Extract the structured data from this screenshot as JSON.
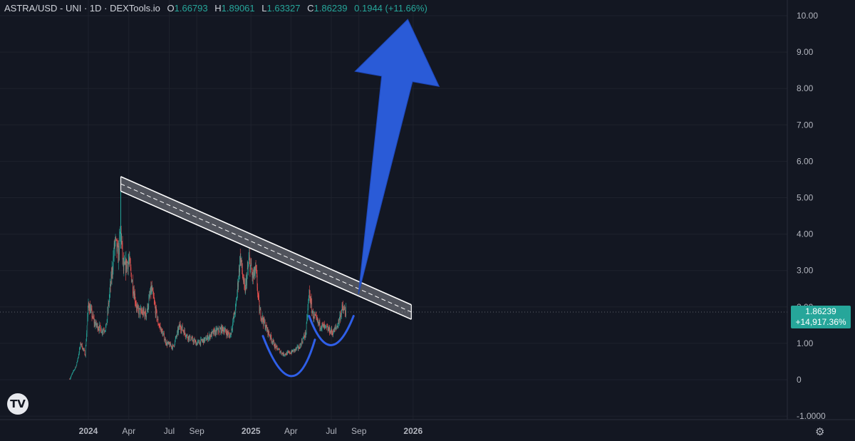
{
  "header": {
    "symbol": "ASTRA/USD - UNI · 1D · DEXTools.io",
    "open_label": "O",
    "open": "1.66793",
    "high_label": "H",
    "high": "1.89061",
    "low_label": "L",
    "low": "1.63327",
    "close_label": "C",
    "close": "1.86239",
    "change": "0.1944 (+11.66%)"
  },
  "price_tag": {
    "price": "1.86239",
    "change_pct": "+14,917.36%"
  },
  "colors": {
    "up": "#26a69a",
    "down": "#ef5350",
    "arrow": "#2a5bd7",
    "curve": "#2f5fe8",
    "band": "#ffffff",
    "background": "#131722"
  },
  "icons": {
    "logo": "tradingview-logo-icon",
    "settings": "gear-icon"
  },
  "chart_data": {
    "type": "candlestick",
    "y_ticks": [
      "10.00",
      "9.00",
      "8.00",
      "7.00",
      "6.00",
      "5.00",
      "4.00",
      "3.00",
      "2.00",
      "1.00",
      "0",
      "-1.0000"
    ],
    "ylim": [
      -1.2,
      10.4
    ],
    "x_ticks": [
      {
        "label": "2024",
        "date": "2024-01-01",
        "bold": true
      },
      {
        "label": "Apr",
        "date": "2024-04-01",
        "bold": false
      },
      {
        "label": "Jul",
        "date": "2024-07-01",
        "bold": false
      },
      {
        "label": "Sep",
        "date": "2024-09-01",
        "bold": false
      },
      {
        "label": "2025",
        "date": "2025-01-01",
        "bold": true
      },
      {
        "label": "Apr",
        "date": "2025-04-01",
        "bold": false
      },
      {
        "label": "Jul",
        "date": "2025-07-01",
        "bold": false
      },
      {
        "label": "Sep",
        "date": "2025-09-01",
        "bold": false
      },
      {
        "label": "2026",
        "date": "2026-01-01",
        "bold": true
      }
    ],
    "price_path": [
      [
        "2023-11-20",
        0.02
      ],
      [
        "2023-12-05",
        0.4
      ],
      [
        "2023-12-15",
        1.0
      ],
      [
        "2023-12-25",
        0.7
      ],
      [
        "2024-01-01",
        2.1
      ],
      [
        "2024-01-15",
        1.55
      ],
      [
        "2024-02-01",
        1.35
      ],
      [
        "2024-02-10",
        1.45
      ],
      [
        "2024-02-20",
        2.6
      ],
      [
        "2024-03-01",
        3.8
      ],
      [
        "2024-03-08",
        3.4
      ],
      [
        "2024-03-14",
        4.1
      ],
      [
        "2024-03-20",
        3.0
      ],
      [
        "2024-04-01",
        3.3
      ],
      [
        "2024-04-10",
        2.6
      ],
      [
        "2024-04-20",
        1.9
      ],
      [
        "2024-05-10",
        1.8
      ],
      [
        "2024-05-22",
        2.5
      ],
      [
        "2024-06-05",
        1.6
      ],
      [
        "2024-06-25",
        1.0
      ],
      [
        "2024-07-10",
        0.9
      ],
      [
        "2024-07-25",
        1.5
      ],
      [
        "2024-08-10",
        1.2
      ],
      [
        "2024-09-01",
        1.0
      ],
      [
        "2024-09-20",
        1.1
      ],
      [
        "2024-10-10",
        1.3
      ],
      [
        "2024-10-30",
        1.4
      ],
      [
        "2024-11-15",
        1.2
      ],
      [
        "2024-11-28",
        2.0
      ],
      [
        "2024-12-08",
        3.4
      ],
      [
        "2024-12-18",
        2.4
      ],
      [
        "2024-12-28",
        3.3
      ],
      [
        "2025-01-05",
        2.8
      ],
      [
        "2025-01-12",
        3.0
      ],
      [
        "2025-01-20",
        1.9
      ],
      [
        "2025-02-05",
        1.4
      ],
      [
        "2025-02-25",
        0.9
      ],
      [
        "2025-03-15",
        0.7
      ],
      [
        "2025-04-01",
        0.75
      ],
      [
        "2025-04-20",
        0.9
      ],
      [
        "2025-05-05",
        1.3
      ],
      [
        "2025-05-12",
        2.4
      ],
      [
        "2025-05-20",
        1.8
      ],
      [
        "2025-06-01",
        1.55
      ],
      [
        "2025-06-20",
        1.4
      ],
      [
        "2025-07-05",
        1.3
      ],
      [
        "2025-07-15",
        1.5
      ],
      [
        "2025-07-25",
        1.95
      ],
      [
        "2025-08-03",
        1.86
      ]
    ],
    "channel": {
      "start": [
        "2024-03-14",
        5.38
      ],
      "end": [
        "2025-12-28",
        1.86
      ],
      "half_width": 0.2
    },
    "curves": [
      {
        "from": [
          "2025-01-28",
          1.2
        ],
        "bottom": [
          "2025-04-01",
          0.1
        ],
        "to": [
          "2025-05-25",
          1.1
        ]
      },
      {
        "from": [
          "2025-05-12",
          1.75
        ],
        "bottom": [
          "2025-06-30",
          0.95
        ],
        "to": [
          "2025-08-20",
          1.75
        ]
      }
    ],
    "arrow": {
      "tail": [
        "2025-08-31",
        2.35
      ],
      "head": [
        "2025-12-20",
        9.9
      ]
    }
  }
}
